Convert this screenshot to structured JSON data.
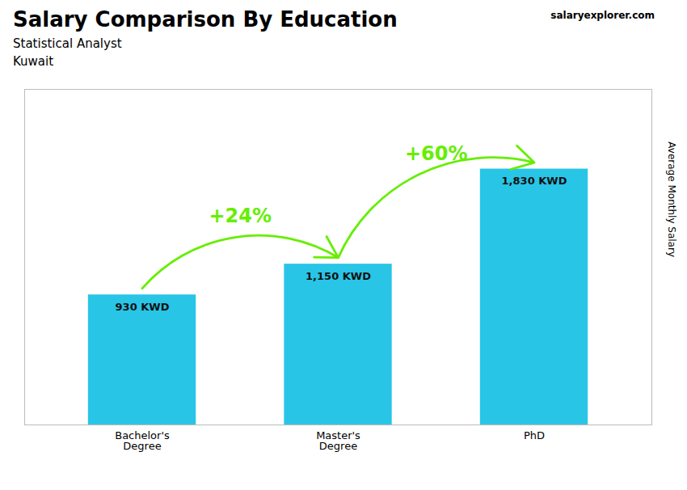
{
  "chart_data": {
    "type": "bar",
    "title": "Salary Comparison By Education",
    "subtitle": "Statistical Analyst",
    "location": "Kuwait",
    "source": "salaryexplorer.com",
    "ylabel": "Average Monthly Salary",
    "categories": [
      "Bachelor's\nDegree",
      "Master's\nDegree",
      "PhD"
    ],
    "values": [
      930,
      1150,
      1830
    ],
    "value_labels": [
      "930 KWD",
      "1,150 KWD",
      "1,830 KWD"
    ],
    "data_labels": true,
    "color": "#29c5e6",
    "ylim": [
      0,
      2400
    ],
    "tick_labels": "x",
    "grid": false,
    "annotations": [
      {
        "text": "+24%",
        "from": "Bachelor's\nDegree",
        "to": "Master's\nDegree",
        "color": "#66ee00"
      },
      {
        "text": "+60%",
        "from": "Master's\nDegree",
        "to": "PhD",
        "color": "#66ee00"
      }
    ]
  }
}
